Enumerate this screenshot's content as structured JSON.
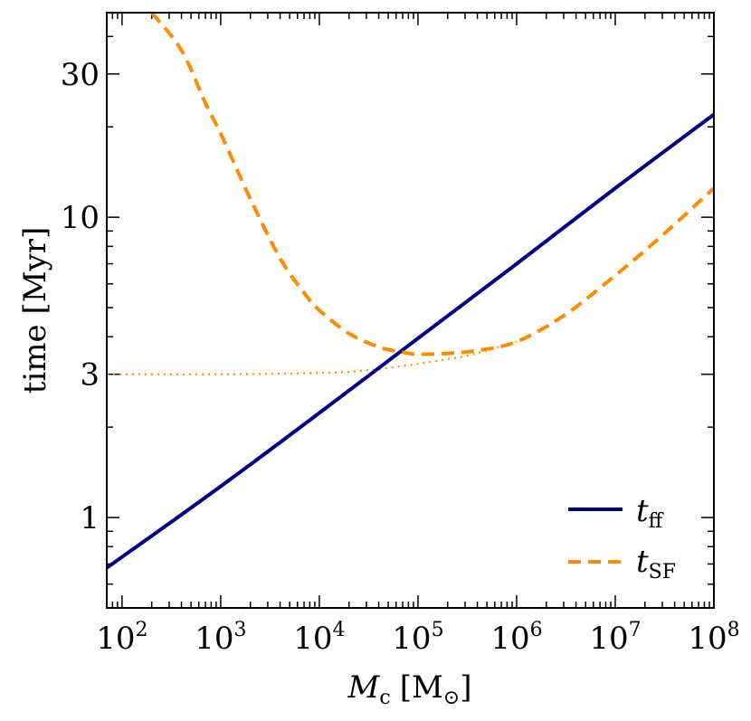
{
  "chart_data": {
    "type": "line",
    "title": "",
    "xlabel": {
      "main": "M",
      "sub": "c",
      "unit": "[M",
      "unit_symbol": "⊙",
      "unit_close": "]"
    },
    "ylabel": "time [Myr]",
    "xscale": "log",
    "yscale": "log",
    "xlim": [
      70,
      100000000
    ],
    "ylim": [
      0.5,
      48
    ],
    "x_ticks": [
      {
        "value": 100,
        "base": "10",
        "exp": "2"
      },
      {
        "value": 1000,
        "base": "10",
        "exp": "3"
      },
      {
        "value": 10000,
        "base": "10",
        "exp": "4"
      },
      {
        "value": 100000,
        "base": "10",
        "exp": "5"
      },
      {
        "value": 1000000,
        "base": "10",
        "exp": "6"
      },
      {
        "value": 10000000,
        "base": "10",
        "exp": "7"
      },
      {
        "value": 100000000,
        "base": "10",
        "exp": "8"
      }
    ],
    "y_ticks": [
      {
        "value": 1,
        "label": "1"
      },
      {
        "value": 3,
        "label": "3"
      },
      {
        "value": 10,
        "label": "10"
      },
      {
        "value": 30,
        "label": "30"
      }
    ],
    "legend_position": "bottom-right",
    "series": [
      {
        "name": "t_ff",
        "legend_main": "t",
        "legend_sub": "ff",
        "color": "#000080",
        "style": "solid",
        "x": [
          70,
          1000,
          10000,
          100000,
          1000000,
          10000000,
          100000000
        ],
        "y": [
          0.68,
          1.27,
          2.23,
          3.95,
          7.0,
          12.5,
          22.0
        ]
      },
      {
        "name": "t_SF",
        "legend_main": "t",
        "legend_sub": "SF",
        "color": "#ff8c00",
        "style": "dashed",
        "x": [
          200,
          400,
          700,
          1000,
          2000,
          4000,
          7000,
          10000,
          20000,
          40000,
          70000,
          100000,
          200000,
          400000,
          1000000,
          3000000,
          10000000,
          30000000,
          100000000
        ],
        "y": [
          48,
          36,
          24,
          19,
          11.5,
          7.3,
          5.6,
          4.9,
          4.1,
          3.7,
          3.55,
          3.5,
          3.52,
          3.6,
          3.85,
          4.7,
          6.4,
          8.7,
          12.5
        ]
      },
      {
        "name": "t_SF floor",
        "color": "#ff8c00",
        "style": "dotted",
        "x": [
          70,
          1000,
          10000,
          30000,
          100000,
          300000,
          500000,
          1000000
        ],
        "y": [
          3.0,
          3.0,
          3.03,
          3.09,
          3.25,
          3.45,
          3.6,
          3.85
        ]
      }
    ]
  }
}
